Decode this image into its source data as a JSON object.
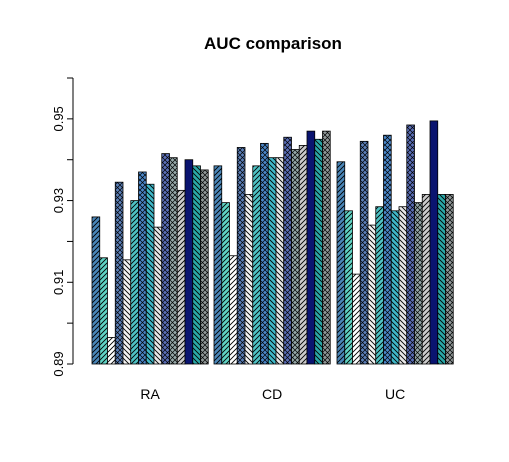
{
  "chart_data": {
    "type": "bar",
    "title": "AUC comparison",
    "xlabel": "",
    "ylabel": "",
    "categories": [
      "RA",
      "CD",
      "UC"
    ],
    "ylim": [
      0.89,
      0.96
    ],
    "yticks": [
      "0.89",
      "0.91",
      "0.93",
      "0.95"
    ],
    "grid": false,
    "legend": "none",
    "series": [
      {
        "values": [
          0.926,
          0.9385,
          0.9395
        ],
        "color": "#4a86b8",
        "pattern": "hatch-right"
      },
      {
        "values": [
          0.916,
          0.9295,
          0.9275
        ],
        "color": "#5fd3c4",
        "pattern": "hatch-right"
      },
      {
        "values": [
          0.8965,
          0.9165,
          0.912
        ],
        "color": "#ffffff",
        "pattern": "hatch-right"
      },
      {
        "values": [
          0.9345,
          0.943,
          0.9445
        ],
        "color": "#5b7fb8",
        "pattern": "crosshatch"
      },
      {
        "values": [
          0.9155,
          0.9315,
          0.924
        ],
        "color": "#f2f2f2",
        "pattern": "hatch-left"
      },
      {
        "values": [
          0.93,
          0.9385,
          0.9285
        ],
        "color": "#4ec2c4",
        "pattern": "hatch-right"
      },
      {
        "values": [
          0.937,
          0.944,
          0.946
        ],
        "color": "#4a86c8",
        "pattern": "crosshatch"
      },
      {
        "values": [
          0.934,
          0.9405,
          0.9275
        ],
        "color": "#40b8c8",
        "pattern": "hatch-left"
      },
      {
        "values": [
          0.9235,
          0.9405,
          0.9285
        ],
        "color": "#e8e8e8",
        "pattern": "hatch-left"
      },
      {
        "values": [
          0.9415,
          0.9455,
          0.9485
        ],
        "color": "#5b6fb8",
        "pattern": "crosshatch"
      },
      {
        "values": [
          0.9405,
          0.9425,
          0.9295
        ],
        "color": "#95a8a8",
        "pattern": "crosshatch"
      },
      {
        "values": [
          0.9325,
          0.9435,
          0.9315
        ],
        "color": "#cccccc",
        "pattern": "hatch-right"
      },
      {
        "values": [
          0.94,
          0.947,
          0.9495
        ],
        "color": "#0a1470",
        "pattern": "solid"
      },
      {
        "values": [
          0.9385,
          0.945,
          0.9315
        ],
        "color": "#2aa8a8",
        "pattern": "hatch-left"
      },
      {
        "values": [
          0.9375,
          0.947,
          0.9315
        ],
        "color": "#909898",
        "pattern": "crosshatch"
      }
    ]
  }
}
